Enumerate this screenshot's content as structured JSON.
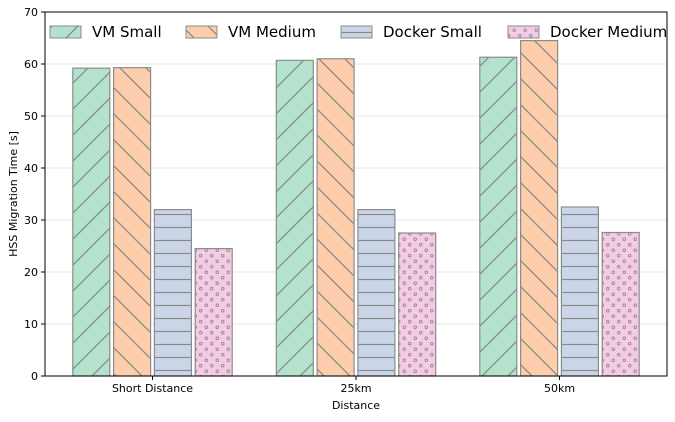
{
  "chart_data": {
    "type": "bar",
    "categories": [
      "Short Distance",
      "25km",
      "50km"
    ],
    "series": [
      {
        "name": "VM Small",
        "values": [
          59.2,
          60.7,
          61.3
        ],
        "color": "#b3e2cd",
        "pattern": "diagonal-up"
      },
      {
        "name": "VM Medium",
        "values": [
          59.3,
          61.0,
          64.5
        ],
        "color": "#fdcdac",
        "pattern": "diagonal-down"
      },
      {
        "name": "Docker Small",
        "values": [
          32.0,
          32.0,
          32.5
        ],
        "color": "#cbd5e8",
        "pattern": "horizontal"
      },
      {
        "name": "Docker Medium",
        "values": [
          24.5,
          27.5,
          27.6
        ],
        "color": "#f4cae4",
        "pattern": "dots"
      }
    ],
    "title": "",
    "xlabel": "Distance",
    "ylabel": "HSS Migration Time [s]",
    "ylim": [
      0,
      70
    ],
    "yticks": [
      "0",
      "10",
      "20",
      "30",
      "40",
      "50",
      "60",
      "70"
    ],
    "grid": "horizontal",
    "legend_placement": "top"
  }
}
